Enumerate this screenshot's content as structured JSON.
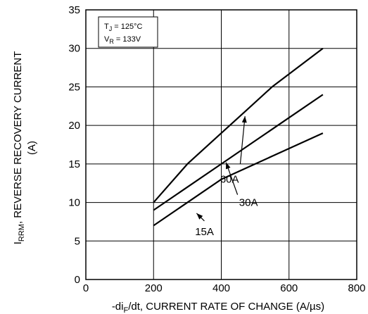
{
  "chart_data": {
    "type": "line",
    "xlabel": "-diF/dt, CURRENT RATE OF CHANGE (A/µs)",
    "xlabel_parts": {
      "prefix": "-di",
      "sub": "F",
      "suffix": "/dt, CURRENT RATE OF CHANGE (A/µs)"
    },
    "ylabel": "IRRM, REVERSE RECOVERY CURRENT (A)",
    "ylabel_parts": {
      "prefix": "I",
      "sub": "RRM",
      "suffix": ", REVERSE RECOVERY CURRENT",
      "line2": "(A)"
    },
    "xlim": [
      0,
      800
    ],
    "ylim": [
      0,
      35
    ],
    "x_ticks": [
      0,
      200,
      400,
      600,
      800
    ],
    "y_ticks": [
      0,
      5,
      10,
      15,
      20,
      25,
      30,
      35
    ],
    "grid": true,
    "conditions": [
      {
        "sym": "T",
        "sub": "J",
        "value": " = 125°C"
      },
      {
        "sym": "V",
        "sub": "R",
        "value": " = 133V"
      }
    ],
    "series": [
      {
        "name": "60A",
        "x": [
          200,
          300,
          400,
          475,
          550,
          700
        ],
        "y": [
          10,
          15,
          19,
          22,
          25,
          30
        ]
      },
      {
        "name": "30A",
        "x": [
          200,
          300,
          400,
          500,
          600,
          700
        ],
        "y": [
          9,
          12,
          15,
          18,
          21,
          24
        ]
      },
      {
        "name": "15A",
        "x": [
          200,
          300,
          400,
          500,
          550,
          700
        ],
        "y": [
          7,
          10,
          13,
          15,
          16,
          19
        ]
      }
    ]
  }
}
